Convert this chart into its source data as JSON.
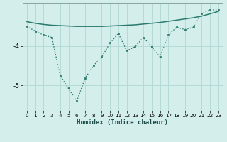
{
  "x": [
    0,
    1,
    2,
    3,
    4,
    5,
    6,
    7,
    8,
    9,
    10,
    11,
    12,
    13,
    14,
    15,
    16,
    17,
    18,
    19,
    20,
    21,
    22,
    23
  ],
  "line1": [
    -3.5,
    -3.62,
    -3.72,
    -3.78,
    -4.75,
    -5.08,
    -5.4,
    -4.82,
    -4.5,
    -4.28,
    -3.92,
    -3.68,
    -4.12,
    -4.02,
    -3.78,
    -4.02,
    -4.28,
    -3.72,
    -3.52,
    -3.58,
    -3.52,
    -3.18,
    -3.08,
    -3.08
  ],
  "line2": [
    -3.38,
    -3.42,
    -3.45,
    -3.47,
    -3.48,
    -3.49,
    -3.5,
    -3.5,
    -3.5,
    -3.5,
    -3.49,
    -3.48,
    -3.47,
    -3.46,
    -3.44,
    -3.42,
    -3.4,
    -3.37,
    -3.34,
    -3.31,
    -3.28,
    -3.24,
    -3.18,
    -3.12
  ],
  "line_color": "#2a7a6e",
  "bg_color": "#d4eeec",
  "grid_color": "#b0d8d4",
  "spine_color": "#7a9a98",
  "xlabel": "Humidex (Indice chaleur)",
  "ylim": [
    -5.65,
    -2.9
  ],
  "xlim": [
    -0.5,
    23.5
  ],
  "yticks": [
    -5,
    -4
  ],
  "xticks": [
    0,
    1,
    2,
    3,
    4,
    5,
    6,
    7,
    8,
    9,
    10,
    11,
    12,
    13,
    14,
    15,
    16,
    17,
    18,
    19,
    20,
    21,
    22,
    23
  ]
}
